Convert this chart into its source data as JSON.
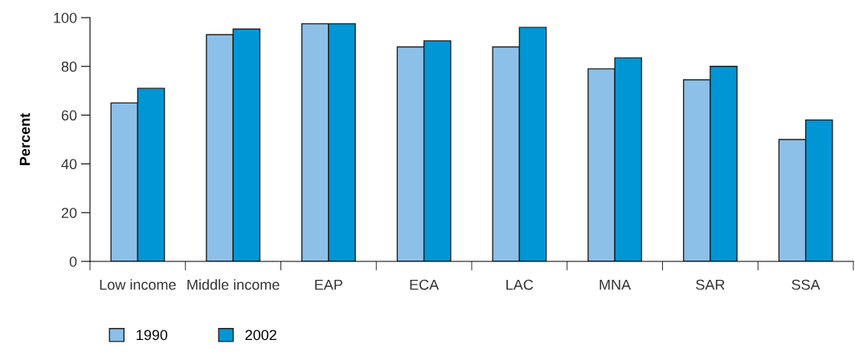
{
  "chart_data": {
    "type": "bar",
    "ylabel": "Percent",
    "categories": [
      "Low income",
      "Middle income",
      "EAP",
      "ECA",
      "LAC",
      "MNA",
      "SAR",
      "SSA"
    ],
    "series": [
      {
        "name": "1990",
        "color": "#8dc0e8",
        "values": [
          65,
          93,
          97.5,
          88,
          88,
          79,
          74.5,
          50
        ]
      },
      {
        "name": "2002",
        "color": "#0096d6",
        "values": [
          71,
          95.3,
          97.5,
          90.5,
          96,
          83.5,
          80,
          58
        ]
      }
    ],
    "ylim": [
      0,
      100
    ],
    "yticks": [
      0,
      20,
      40,
      60,
      80,
      100
    ],
    "grid": false,
    "legend": "bottom left"
  }
}
